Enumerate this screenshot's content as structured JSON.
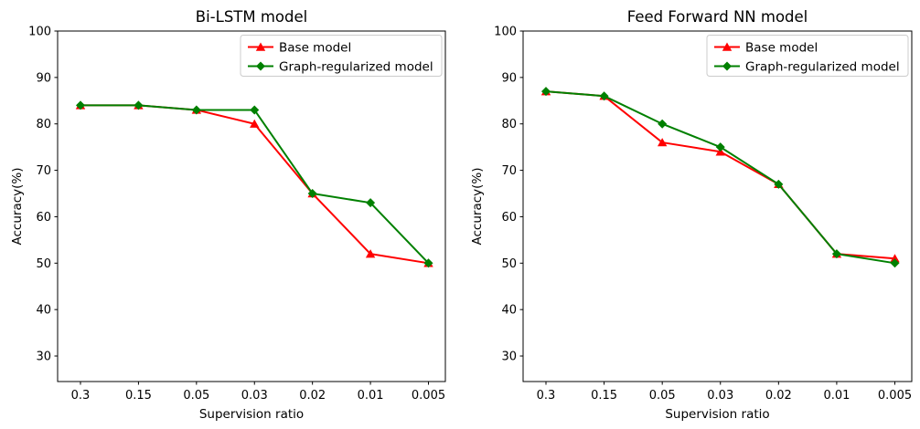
{
  "figure": {
    "background": "#ffffff",
    "text_color": "#000000",
    "spine_color": "#000000",
    "legend_border_color": "#cccccc",
    "legend_background": "#ffffff"
  },
  "chart_data": [
    {
      "type": "line",
      "title": "Bi-LSTM model",
      "xlabel": "Supervision ratio",
      "ylabel": "Accuracy(%)",
      "categories": [
        "0.3",
        "0.15",
        "0.05",
        "0.03",
        "0.02",
        "0.01",
        "0.005"
      ],
      "yticks": [
        30,
        40,
        50,
        60,
        70,
        80,
        90,
        100
      ],
      "ylim": [
        24.5,
        100
      ],
      "grid": false,
      "legend_position": "upper right",
      "series": [
        {
          "name": "Base model",
          "color": "#ff0000",
          "marker": "triangle-up",
          "values": [
            84,
            84,
            83,
            80,
            65,
            52,
            50
          ]
        },
        {
          "name": "Graph-regularized model",
          "color": "#008000",
          "marker": "diamond",
          "values": [
            84,
            84,
            83,
            83,
            65,
            63,
            50
          ]
        }
      ]
    },
    {
      "type": "line",
      "title": "Feed Forward NN model",
      "xlabel": "Supervision ratio",
      "ylabel": "Accuracy(%)",
      "categories": [
        "0.3",
        "0.15",
        "0.05",
        "0.03",
        "0.02",
        "0.01",
        "0.005"
      ],
      "yticks": [
        30,
        40,
        50,
        60,
        70,
        80,
        90,
        100
      ],
      "ylim": [
        24.5,
        100
      ],
      "grid": false,
      "legend_position": "upper right",
      "series": [
        {
          "name": "Base model",
          "color": "#ff0000",
          "marker": "triangle-up",
          "values": [
            87,
            86,
            76,
            74,
            67,
            52,
            51
          ]
        },
        {
          "name": "Graph-regularized model",
          "color": "#008000",
          "marker": "diamond",
          "values": [
            87,
            86,
            80,
            75,
            67,
            52,
            50
          ]
        }
      ]
    }
  ]
}
